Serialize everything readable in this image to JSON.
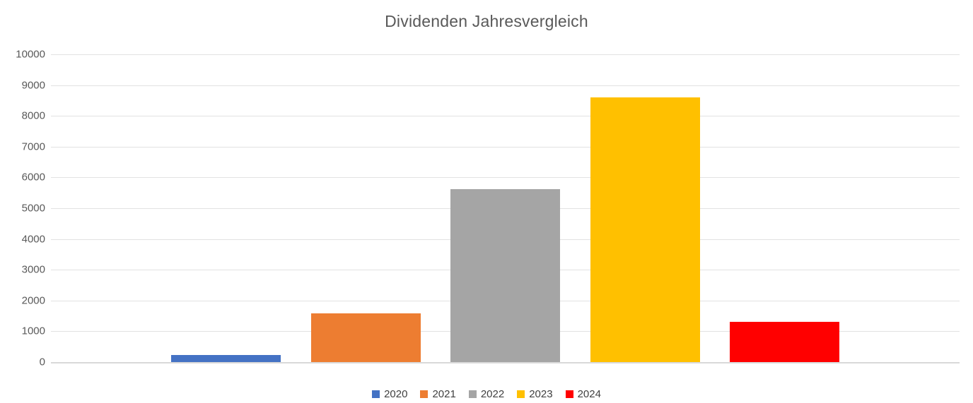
{
  "chart_data": {
    "type": "bar",
    "title": "Dividenden Jahresvergleich",
    "categories": [
      ""
    ],
    "series": [
      {
        "name": "2020",
        "value": 230,
        "color": "#4472C4"
      },
      {
        "name": "2021",
        "value": 1590,
        "color": "#ED7D31"
      },
      {
        "name": "2022",
        "value": 5630,
        "color": "#A5A5A5"
      },
      {
        "name": "2023",
        "value": 8590,
        "color": "#FFC000"
      },
      {
        "name": "2024",
        "value": 1310,
        "color": "#FF0000"
      }
    ],
    "xlabel": "",
    "ylabel": "",
    "ylim": [
      0,
      10000
    ],
    "ytick_step": 1000,
    "ytick_labels": [
      "0",
      "1000",
      "2000",
      "3000",
      "4000",
      "5000",
      "6000",
      "7000",
      "8000",
      "9000",
      "10000"
    ],
    "grid": true,
    "gridline_color": "#e2e2e2",
    "legend_position": "bottom",
    "title_color": "#595959",
    "axis_label_color": "#595959",
    "legend_text_color": "#404040",
    "background_color": "#ffffff"
  }
}
